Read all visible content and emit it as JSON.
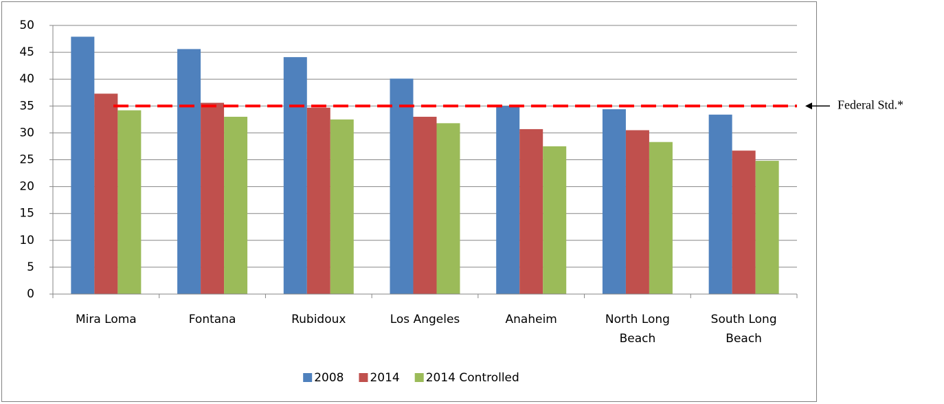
{
  "chart_data": {
    "type": "bar",
    "categories": [
      "Mira Loma",
      "Fontana",
      "Rubidoux",
      "Los Angeles",
      "Anaheim",
      "North Long Beach",
      "South Long Beach"
    ],
    "series": [
      {
        "name": "2008",
        "color": "#4f81bd",
        "values": [
          47.9,
          45.6,
          44.1,
          40.1,
          35.0,
          34.4,
          33.4
        ]
      },
      {
        "name": "2014",
        "color": "#c0504d",
        "values": [
          37.3,
          35.6,
          34.7,
          33.0,
          30.7,
          30.5,
          26.7
        ]
      },
      {
        "name": "2014 Controlled",
        "color": "#9bbb59",
        "values": [
          34.2,
          33.0,
          32.5,
          31.8,
          27.5,
          28.3,
          24.8
        ]
      }
    ],
    "ylim": [
      0,
      50
    ],
    "yticks": [
      0,
      5,
      10,
      15,
      20,
      25,
      30,
      35,
      40,
      45,
      50
    ],
    "grid": true,
    "reference_line": {
      "value": 35,
      "label": "Federal Std.*",
      "color": "#ff0000"
    },
    "legend": "bottom"
  }
}
